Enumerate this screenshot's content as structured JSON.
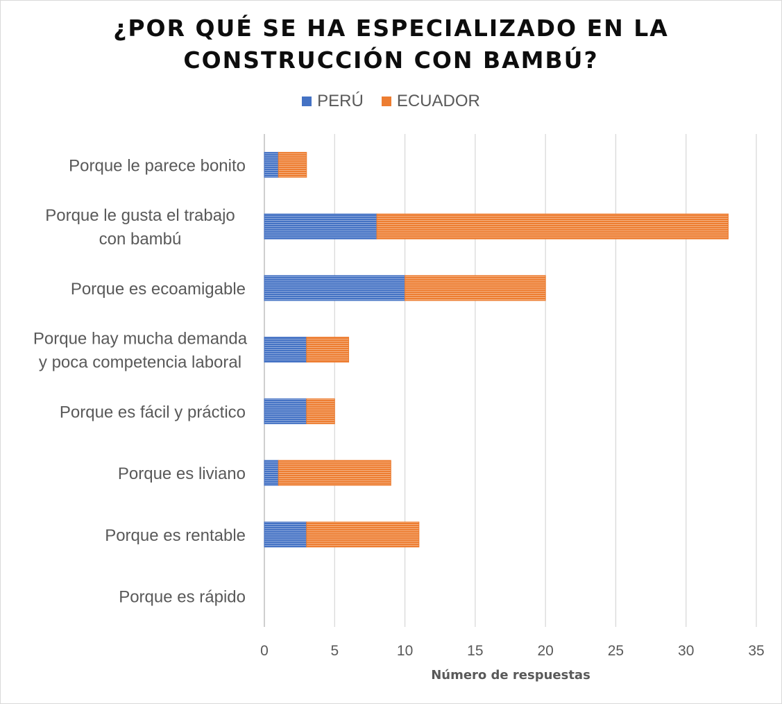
{
  "chart_data": {
    "type": "bar",
    "orientation": "horizontal",
    "stacked": true,
    "title_lines": [
      "¿POR QUÉ SE HA ESPECIALIZADO EN LA",
      "CONSTRUCCIÓN CON BAMBÚ?"
    ],
    "xlabel": "Número de respuestas",
    "ylabel": "",
    "xlim": [
      0,
      35
    ],
    "xticks": [
      0,
      5,
      10,
      15,
      20,
      25,
      30,
      35
    ],
    "grid": true,
    "legend_position": "top",
    "categories": [
      [
        "Porque le parece bonito"
      ],
      [
        "Porque le gusta el trabajo",
        "con bambú"
      ],
      [
        "Porque es ecoamigable"
      ],
      [
        "Porque hay mucha demanda",
        "y poca competencia laboral"
      ],
      [
        "Porque es fácil y práctico"
      ],
      [
        "Porque es liviano"
      ],
      [
        "Porque es rentable"
      ],
      [
        "Porque es rápido"
      ]
    ],
    "series": [
      {
        "name": "PERÚ",
        "color": "#4472c4",
        "values": [
          1,
          8,
          10,
          3,
          3,
          1,
          3,
          0
        ]
      },
      {
        "name": "ECUADOR",
        "color": "#ed7d31",
        "values": [
          2,
          25,
          10,
          3,
          2,
          8,
          8,
          0
        ]
      }
    ]
  }
}
